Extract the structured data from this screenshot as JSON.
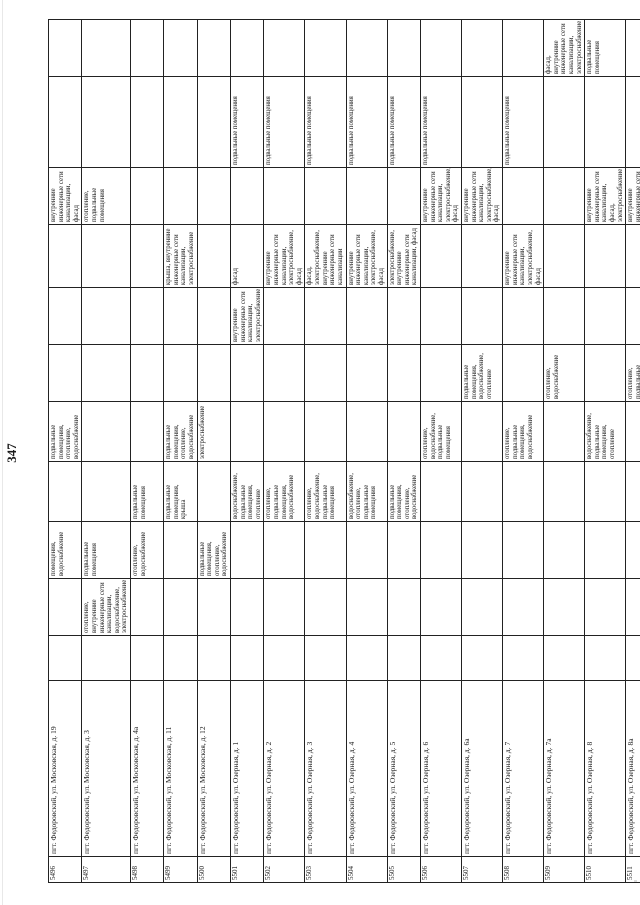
{
  "page_number": "347",
  "columns": [
    "num",
    "address",
    "c3",
    "c4",
    "c5",
    "c6",
    "c7",
    "c8",
    "c9",
    "c10",
    "c11",
    "c12",
    "c13"
  ],
  "rows": [
    {
      "num": "5496",
      "address": "пгт. Федоровский, ул. Московская, д. 19",
      "c3": "",
      "c4": "",
      "c5": "помещения, водоснабжение",
      "c6": "",
      "c7": "подвальные помещения, отопление, водоснабжение",
      "c8": "",
      "c9": "",
      "c10": "",
      "c11": "внутренние инженерные сети канализации, фасад",
      "c12": "",
      "c13": ""
    },
    {
      "num": "5497",
      "address": "пгт. Федоровский, ул. Московская, д. 3",
      "c3": "",
      "c4": "отопление, внутренние инженерные сети канализации, водоснабжение, электроснабжение",
      "c5": "подвальные помещения",
      "c6": "",
      "c7": "",
      "c8": "",
      "c9": "",
      "c10": "",
      "c11": "отопление, подвальные помещения",
      "c12": "",
      "c13": ""
    },
    {
      "num": "5498",
      "address": "пгт. Федоровский, ул. Московская, д. 4а",
      "c3": "",
      "c4": "",
      "c5": "отопление, водоснабжение",
      "c6": "подвальные помещения",
      "c7": "",
      "c8": "",
      "c9": "",
      "c10": "",
      "c11": "",
      "c12": "",
      "c13": ""
    },
    {
      "num": "5499",
      "address": "пгт. Федоровский, ул. Московская, д. 11",
      "c3": "",
      "c4": "",
      "c5": "",
      "c6": "подвальные помещения, крыша",
      "c7": "подвальные помещения, отопление, водоснабжение",
      "c8": "",
      "c9": "",
      "c10": "крыша, внутренние инженерные сети канализации, электроснабжение",
      "c11": "",
      "c12": "",
      "c13": ""
    },
    {
      "num": "5500",
      "address": "пгт. Федоровский, ул. Московская, д. 12",
      "c3": "",
      "c4": "",
      "c5": "подвальные помещения, отопление, водоснабжение",
      "c6": "",
      "c7": "электроснабжение",
      "c8": "",
      "c9": "",
      "c10": "",
      "c11": "",
      "c12": "",
      "c13": ""
    },
    {
      "num": "5501",
      "address": "пгт. Федоровский, ул. Озерная, д. 1",
      "c3": "",
      "c4": "",
      "c5": "",
      "c6": "водоснабжение, подвальные помещения, отопление",
      "c7": "",
      "c8": "",
      "c9": "внутренние инженерные сети канализации, электроснабжение",
      "c10": "фасад",
      "c11": "",
      "c12": "подвальные помещения",
      "c13": ""
    },
    {
      "num": "5502",
      "address": "пгт. Федоровский, ул. Озерная, д. 2",
      "c3": "",
      "c4": "",
      "c5": "",
      "c6": "отопление, подвальные помещения, водоснабжение",
      "c7": "",
      "c8": "",
      "c9": "",
      "c10": "внутренние инженерные сети канализации, электроснабжение, фасад",
      "c11": "",
      "c12": "подвальные помещения",
      "c13": ""
    },
    {
      "num": "5503",
      "address": "пгт. Федоровский, ул. Озерная, д. 3",
      "c3": "",
      "c4": "",
      "c5": "",
      "c6": "отопление, водоснабжение, подвальные помещения",
      "c7": "",
      "c8": "",
      "c9": "",
      "c10": "фасад, электроснабжение, внутренние инженерные сети канализации",
      "c11": "",
      "c12": "подвальные помещения",
      "c13": ""
    },
    {
      "num": "5504",
      "address": "пгт. Федоровский, ул. Озерная, д. 4",
      "c3": "",
      "c4": "",
      "c5": "",
      "c6": "водоснабжение, отопление, подвальные помещения",
      "c7": "",
      "c8": "",
      "c9": "",
      "c10": "внутренние инженерные сети канализации, электроснабжение, фасад",
      "c11": "",
      "c12": "подвальные помещения",
      "c13": ""
    },
    {
      "num": "5505",
      "address": "пгт. Федоровский, ул. Озерная, д. 5",
      "c3": "",
      "c4": "",
      "c5": "",
      "c6": "подвальные помещения, отопление, водоснабжение",
      "c7": "",
      "c8": "",
      "c9": "",
      "c10": "электроснабжение, внутренние инженерные сети канализации, фасад",
      "c11": "",
      "c12": "подвальные помещения",
      "c13": ""
    },
    {
      "num": "5506",
      "address": "пгт. Федоровский, ул. Озерная, д. 6",
      "c3": "",
      "c4": "",
      "c5": "",
      "c6": "",
      "c7": "отопление, водоснабжение, подвальные помещения",
      "c8": "",
      "c9": "",
      "c10": "",
      "c11": "внутренние инженерные сети канализации, электроснабжение, фасад",
      "c12": "подвальные помещения",
      "c13": ""
    },
    {
      "num": "5507",
      "address": "пгт. Федоровский, ул. Озерная, д. 6а",
      "c3": "",
      "c4": "",
      "c5": "",
      "c6": "",
      "c7": "",
      "c8": "подвальные помещения, водоснабжение, отопление",
      "c9": "",
      "c10": "",
      "c11": "внутренние инженерные сети канализации, электроснабжение, фасад",
      "c12": "",
      "c13": ""
    },
    {
      "num": "5508",
      "address": "пгт. Федоровский, ул. Озерная, д. 7",
      "c3": "",
      "c4": "",
      "c5": "",
      "c6": "",
      "c7": "отопление, подвальные помещения, водоснабжение",
      "c8": "",
      "c9": "",
      "c10": "внутренние инженерные сети канализации, электроснабжение, фасад",
      "c11": "",
      "c12": "подвальные помещения",
      "c13": ""
    },
    {
      "num": "5509",
      "address": "пгт. Федоровский, ул. Озерная, д. 7а",
      "c3": "",
      "c4": "",
      "c5": "",
      "c6": "",
      "c7": "",
      "c8": "отопление, водоснабжение",
      "c9": "",
      "c10": "",
      "c11": "",
      "c12": "",
      "c13": "фасад, внутренние инженерные сети канализации, электроснабжение"
    },
    {
      "num": "5510",
      "address": "пгт. Федоровский, ул. Озерная, д. 8",
      "c3": "",
      "c4": "",
      "c5": "",
      "c6": "",
      "c7": "водоснабжение, подвальные помещения, отопление",
      "c8": "",
      "c9": "",
      "c10": "",
      "c11": "внутренние инженерные сети канализации, фасад, электроснабжение",
      "c12": "",
      "c13": "подвальные помещения"
    },
    {
      "num": "5511",
      "address": "пгт. Федоровский, ул. Озерная, д. 8а",
      "c3": "",
      "c4": "",
      "c5": "",
      "c6": "",
      "c7": "",
      "c8": "отопление, подвальные помещения, водоснабжение",
      "c9": "",
      "c10": "",
      "c11": "внутренние инженерные сети канализации, фасад, электроснабжение",
      "c12": "",
      "c13": ""
    }
  ]
}
